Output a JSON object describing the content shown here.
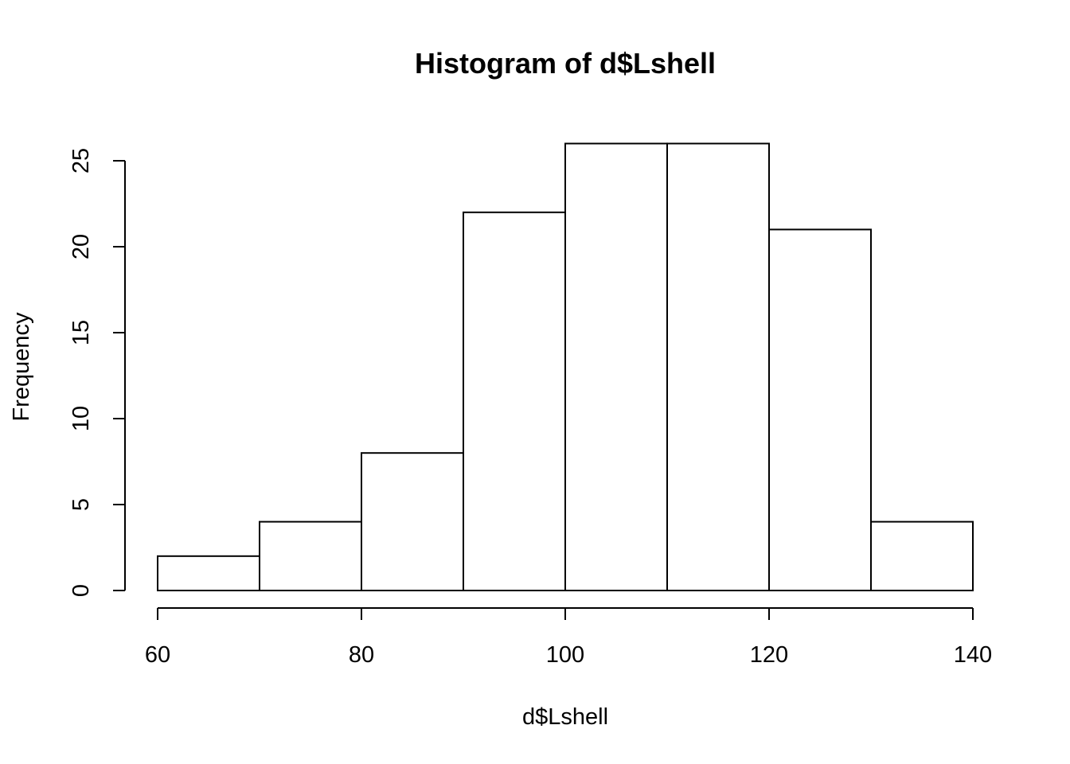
{
  "chart_data": {
    "type": "bar",
    "title": "Histogram of d$Lshell",
    "xlabel": "d$Lshell",
    "ylabel": "Frequency",
    "bins": [
      {
        "start": 60,
        "end": 70,
        "count": 2
      },
      {
        "start": 70,
        "end": 80,
        "count": 4
      },
      {
        "start": 80,
        "end": 90,
        "count": 8
      },
      {
        "start": 90,
        "end": 100,
        "count": 22
      },
      {
        "start": 100,
        "end": 110,
        "count": 26
      },
      {
        "start": 110,
        "end": 120,
        "count": 26
      },
      {
        "start": 120,
        "end": 130,
        "count": 21
      },
      {
        "start": 130,
        "end": 140,
        "count": 4
      }
    ],
    "xlim": [
      60,
      140
    ],
    "ylim": [
      0,
      26
    ],
    "x_ticks": [
      60,
      80,
      100,
      120,
      140
    ],
    "y_ticks": [
      0,
      5,
      10,
      15,
      20,
      25
    ],
    "grid": false,
    "bar_fill": "#ffffff",
    "bar_stroke": "#000000"
  }
}
